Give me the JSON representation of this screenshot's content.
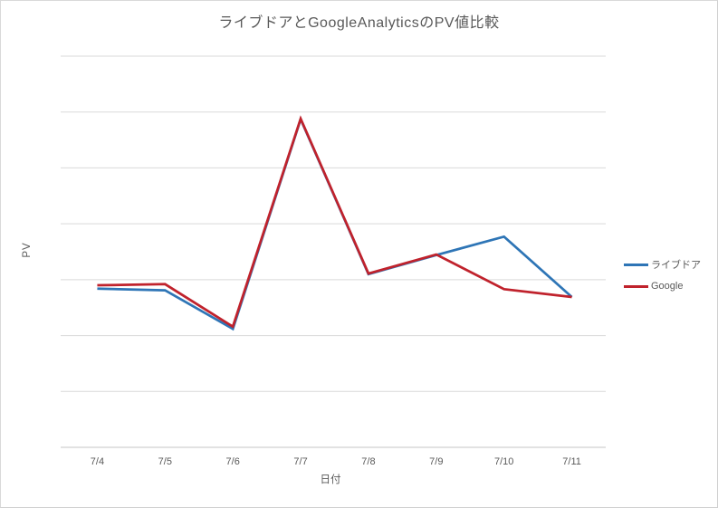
{
  "page": {
    "background": "#ffffff",
    "border_color": "#d9d9d9"
  },
  "chart_data": {
    "type": "line",
    "title": "ライブドアとGoogleAnalyticsのPV値比較",
    "xlabel": "日付",
    "ylabel": "PV",
    "categories": [
      "7/4",
      "7/5",
      "7/6",
      "7/7",
      "7/8",
      "7/9",
      "7/10",
      "7/11"
    ],
    "series": [
      {
        "name": "ライブドア",
        "color": "#2e75b6",
        "values": [
          2.84,
          2.81,
          2.12,
          5.87,
          3.1,
          3.44,
          3.77,
          2.69
        ]
      },
      {
        "name": "Google",
        "color": "#c0222c",
        "values": [
          2.9,
          2.92,
          2.16,
          5.88,
          3.11,
          3.45,
          2.83,
          2.69
        ]
      }
    ],
    "ylim": [
      0,
      7
    ],
    "y_tick_labels_visible": false,
    "grid": "horizontal",
    "legend_position": "right",
    "text_color": "#595959",
    "grid_color": "#d9d9d9",
    "axis_color": "#c6c6c6"
  }
}
